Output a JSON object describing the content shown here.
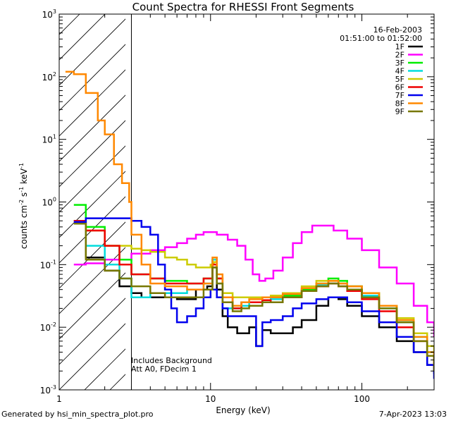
{
  "chart_data": {
    "type": "line",
    "title": "Count Spectra for RHESSI Front Segments",
    "xlabel": "Energy (keV)",
    "ylabel_parts": {
      "main": "counts cm",
      "exp1": "-2",
      "mid": " s",
      "exp2": "-1",
      "unit": " keV",
      "exp3": "-1"
    },
    "xscale": "log",
    "yscale": "log",
    "xlim": [
      1,
      300
    ],
    "ylim": [
      0.001,
      1000
    ],
    "x_ticks": [
      1,
      10,
      100
    ],
    "x_tick_labels": [
      "1",
      "10",
      "100"
    ],
    "y_ticks": [
      {
        "base": "10",
        "exp": "-3",
        "value": 0.001
      },
      {
        "base": "10",
        "exp": "-2",
        "value": 0.01
      },
      {
        "base": "10",
        "exp": "-1",
        "value": 0.1
      },
      {
        "base": "10",
        "exp": "0",
        "value": 1
      },
      {
        "base": "10",
        "exp": "1",
        "value": 10
      },
      {
        "base": "10",
        "exp": "2",
        "value": 100
      },
      {
        "base": "10",
        "exp": "3",
        "value": 1000
      }
    ],
    "date": "16-Feb-2003",
    "time_range": "01:51:00 to 01:52:00",
    "annotation_lines": [
      "Includes Background",
      "Att A0, FDecim 1"
    ],
    "shaded_region": {
      "x_start": 1,
      "x_end": 3
    },
    "series": [
      {
        "name": "1F",
        "color": "#000000",
        "points": [
          [
            1.25,
            0.5
          ],
          [
            1.5,
            0.13
          ],
          [
            2,
            0.08
          ],
          [
            2.5,
            0.045
          ],
          [
            3,
            0.035
          ],
          [
            3.5,
            0.03
          ],
          [
            4,
            0.03
          ],
          [
            5,
            0.03
          ],
          [
            6,
            0.028
          ],
          [
            8,
            0.04
          ],
          [
            9.5,
            0.045
          ],
          [
            10.3,
            0.09
          ],
          [
            11,
            0.04
          ],
          [
            12,
            0.015
          ],
          [
            13,
            0.01
          ],
          [
            15,
            0.008
          ],
          [
            18,
            0.01
          ],
          [
            20,
            0.005
          ],
          [
            22,
            0.009
          ],
          [
            25,
            0.008
          ],
          [
            30,
            0.008
          ],
          [
            35,
            0.01
          ],
          [
            40,
            0.013
          ],
          [
            50,
            0.022
          ],
          [
            60,
            0.03
          ],
          [
            70,
            0.028
          ],
          [
            80,
            0.022
          ],
          [
            100,
            0.015
          ],
          [
            130,
            0.01
          ],
          [
            170,
            0.006
          ],
          [
            220,
            0.004
          ],
          [
            270,
            0.0025
          ],
          [
            300,
            0.0018
          ]
        ]
      },
      {
        "name": "2F",
        "color": "#ff00ff",
        "points": [
          [
            1.25,
            0.1
          ],
          [
            1.5,
            0.105
          ],
          [
            2,
            0.12
          ],
          [
            3,
            0.15
          ],
          [
            4,
            0.17
          ],
          [
            5,
            0.19
          ],
          [
            6,
            0.22
          ],
          [
            7,
            0.26
          ],
          [
            8,
            0.3
          ],
          [
            9,
            0.33
          ],
          [
            10,
            0.33
          ],
          [
            11,
            0.3
          ],
          [
            13,
            0.25
          ],
          [
            15,
            0.2
          ],
          [
            17,
            0.12
          ],
          [
            19,
            0.07
          ],
          [
            21,
            0.055
          ],
          [
            23,
            0.06
          ],
          [
            26,
            0.08
          ],
          [
            30,
            0.13
          ],
          [
            35,
            0.22
          ],
          [
            40,
            0.33
          ],
          [
            47,
            0.42
          ],
          [
            55,
            0.42
          ],
          [
            65,
            0.35
          ],
          [
            80,
            0.26
          ],
          [
            100,
            0.17
          ],
          [
            130,
            0.09
          ],
          [
            170,
            0.05
          ],
          [
            220,
            0.022
          ],
          [
            270,
            0.012
          ],
          [
            300,
            0.007
          ]
        ]
      },
      {
        "name": "3F",
        "color": "#00ee00",
        "points": [
          [
            1.25,
            0.9
          ],
          [
            1.5,
            0.4
          ],
          [
            2,
            0.2
          ],
          [
            2.5,
            0.12
          ],
          [
            3,
            0.07
          ],
          [
            4,
            0.06
          ],
          [
            5,
            0.055
          ],
          [
            7,
            0.05
          ],
          [
            9,
            0.06
          ],
          [
            10.3,
            0.12
          ],
          [
            11,
            0.06
          ],
          [
            12,
            0.025
          ],
          [
            14,
            0.02
          ],
          [
            16,
            0.025
          ],
          [
            18,
            0.025
          ],
          [
            22,
            0.03
          ],
          [
            25,
            0.03
          ],
          [
            30,
            0.032
          ],
          [
            40,
            0.04
          ],
          [
            50,
            0.05
          ],
          [
            60,
            0.06
          ],
          [
            70,
            0.055
          ],
          [
            80,
            0.045
          ],
          [
            100,
            0.035
          ],
          [
            130,
            0.022
          ],
          [
            170,
            0.012
          ],
          [
            220,
            0.007
          ],
          [
            270,
            0.004
          ],
          [
            300,
            0.0025
          ]
        ]
      },
      {
        "name": "4F",
        "color": "#00dddd",
        "points": [
          [
            1.25,
            0.5
          ],
          [
            1.5,
            0.2
          ],
          [
            2,
            0.1
          ],
          [
            2.5,
            0.06
          ],
          [
            3,
            0.03
          ],
          [
            4,
            0.035
          ],
          [
            5,
            0.035
          ],
          [
            7,
            0.04
          ],
          [
            9,
            0.05
          ],
          [
            10.3,
            0.12
          ],
          [
            11,
            0.05
          ],
          [
            12,
            0.02
          ],
          [
            14,
            0.02
          ],
          [
            16,
            0.022
          ],
          [
            18,
            0.025
          ],
          [
            22,
            0.03
          ],
          [
            25,
            0.028
          ],
          [
            30,
            0.03
          ],
          [
            40,
            0.038
          ],
          [
            50,
            0.048
          ],
          [
            60,
            0.05
          ],
          [
            70,
            0.05
          ],
          [
            80,
            0.045
          ],
          [
            100,
            0.032
          ],
          [
            130,
            0.02
          ],
          [
            170,
            0.012
          ],
          [
            220,
            0.007
          ],
          [
            270,
            0.004
          ],
          [
            300,
            0.003
          ]
        ]
      },
      {
        "name": "5F",
        "color": "#cccc00",
        "points": [
          [
            1.25,
            0.5
          ],
          [
            1.5,
            0.35
          ],
          [
            2,
            0.2
          ],
          [
            2.5,
            0.2
          ],
          [
            3,
            0.18
          ],
          [
            3.5,
            0.17
          ],
          [
            4,
            0.16
          ],
          [
            5,
            0.13
          ],
          [
            6,
            0.12
          ],
          [
            7,
            0.1
          ],
          [
            8,
            0.09
          ],
          [
            9,
            0.09
          ],
          [
            10,
            0.1
          ],
          [
            10.5,
            0.11
          ],
          [
            11,
            0.06
          ],
          [
            12,
            0.035
          ],
          [
            14,
            0.03
          ],
          [
            16,
            0.03
          ],
          [
            18,
            0.03
          ],
          [
            22,
            0.03
          ],
          [
            25,
            0.032
          ],
          [
            30,
            0.035
          ],
          [
            40,
            0.045
          ],
          [
            50,
            0.055
          ],
          [
            60,
            0.055
          ],
          [
            70,
            0.05
          ],
          [
            80,
            0.045
          ],
          [
            100,
            0.035
          ],
          [
            130,
            0.022
          ],
          [
            170,
            0.014
          ],
          [
            220,
            0.008
          ],
          [
            270,
            0.005
          ],
          [
            300,
            0.003
          ]
        ]
      },
      {
        "name": "6F",
        "color": "#ee0000",
        "points": [
          [
            1.25,
            0.5
          ],
          [
            1.5,
            0.35
          ],
          [
            2,
            0.2
          ],
          [
            2.5,
            0.1
          ],
          [
            3,
            0.07
          ],
          [
            4,
            0.06
          ],
          [
            5,
            0.05
          ],
          [
            7,
            0.05
          ],
          [
            9,
            0.06
          ],
          [
            10.3,
            0.1
          ],
          [
            11,
            0.06
          ],
          [
            12,
            0.03
          ],
          [
            14,
            0.02
          ],
          [
            16,
            0.025
          ],
          [
            18,
            0.025
          ],
          [
            22,
            0.027
          ],
          [
            25,
            0.025
          ],
          [
            30,
            0.03
          ],
          [
            40,
            0.038
          ],
          [
            50,
            0.045
          ],
          [
            60,
            0.05
          ],
          [
            70,
            0.045
          ],
          [
            80,
            0.038
          ],
          [
            100,
            0.028
          ],
          [
            130,
            0.018
          ],
          [
            170,
            0.01
          ],
          [
            220,
            0.006
          ],
          [
            270,
            0.0035
          ],
          [
            300,
            0.0022
          ]
        ]
      },
      {
        "name": "7F",
        "color": "#0000ee",
        "points": [
          [
            1.25,
            0.48
          ],
          [
            1.5,
            0.55
          ],
          [
            2,
            0.55
          ],
          [
            2.5,
            0.55
          ],
          [
            3,
            0.5
          ],
          [
            3.5,
            0.4
          ],
          [
            4,
            0.3
          ],
          [
            4.5,
            0.1
          ],
          [
            5,
            0.04
          ],
          [
            5.5,
            0.02
          ],
          [
            6,
            0.012
          ],
          [
            7,
            0.015
          ],
          [
            8,
            0.02
          ],
          [
            9,
            0.03
          ],
          [
            10,
            0.04
          ],
          [
            11,
            0.03
          ],
          [
            12,
            0.02
          ],
          [
            13,
            0.015
          ],
          [
            15,
            0.015
          ],
          [
            18,
            0.015
          ],
          [
            20,
            0.005
          ],
          [
            22,
            0.012
          ],
          [
            25,
            0.013
          ],
          [
            30,
            0.015
          ],
          [
            35,
            0.02
          ],
          [
            40,
            0.024
          ],
          [
            50,
            0.028
          ],
          [
            60,
            0.03
          ],
          [
            70,
            0.03
          ],
          [
            80,
            0.025
          ],
          [
            100,
            0.018
          ],
          [
            130,
            0.012
          ],
          [
            170,
            0.007
          ],
          [
            220,
            0.004
          ],
          [
            270,
            0.0025
          ],
          [
            300,
            0.0015
          ]
        ]
      },
      {
        "name": "8F",
        "color": "#ff8800",
        "points": [
          [
            1.1,
            120
          ],
          [
            1.25,
            110
          ],
          [
            1.5,
            55
          ],
          [
            1.8,
            20
          ],
          [
            2,
            12
          ],
          [
            2.3,
            4
          ],
          [
            2.6,
            2
          ],
          [
            2.9,
            1
          ],
          [
            3,
            0.3
          ],
          [
            3.5,
            0.1
          ],
          [
            4,
            0.05
          ],
          [
            5,
            0.045
          ],
          [
            7,
            0.04
          ],
          [
            9,
            0.05
          ],
          [
            10.3,
            0.13
          ],
          [
            11,
            0.07
          ],
          [
            12,
            0.03
          ],
          [
            14,
            0.022
          ],
          [
            16,
            0.025
          ],
          [
            18,
            0.028
          ],
          [
            22,
            0.03
          ],
          [
            25,
            0.03
          ],
          [
            30,
            0.034
          ],
          [
            40,
            0.042
          ],
          [
            50,
            0.05
          ],
          [
            60,
            0.055
          ],
          [
            70,
            0.05
          ],
          [
            80,
            0.045
          ],
          [
            100,
            0.035
          ],
          [
            130,
            0.022
          ],
          [
            170,
            0.013
          ],
          [
            220,
            0.007
          ],
          [
            270,
            0.004
          ],
          [
            300,
            0.0025
          ]
        ]
      },
      {
        "name": "9F",
        "color": "#777700",
        "points": [
          [
            1.25,
            0.45
          ],
          [
            1.5,
            0.12
          ],
          [
            2,
            0.08
          ],
          [
            2.5,
            0.06
          ],
          [
            3,
            0.045
          ],
          [
            4,
            0.035
          ],
          [
            5,
            0.03
          ],
          [
            7,
            0.03
          ],
          [
            9,
            0.04
          ],
          [
            10.3,
            0.09
          ],
          [
            11,
            0.05
          ],
          [
            12,
            0.025
          ],
          [
            14,
            0.018
          ],
          [
            16,
            0.02
          ],
          [
            18,
            0.022
          ],
          [
            22,
            0.025
          ],
          [
            25,
            0.025
          ],
          [
            30,
            0.03
          ],
          [
            40,
            0.038
          ],
          [
            50,
            0.045
          ],
          [
            60,
            0.05
          ],
          [
            70,
            0.045
          ],
          [
            80,
            0.04
          ],
          [
            100,
            0.03
          ],
          [
            130,
            0.02
          ],
          [
            170,
            0.012
          ],
          [
            220,
            0.006
          ],
          [
            270,
            0.0035
          ],
          [
            300,
            0.002
          ]
        ]
      }
    ]
  },
  "footer": {
    "generated_by": "Generated by hsi_min_spectra_plot.pro",
    "timestamp": "7-Apr-2023 13:03"
  }
}
